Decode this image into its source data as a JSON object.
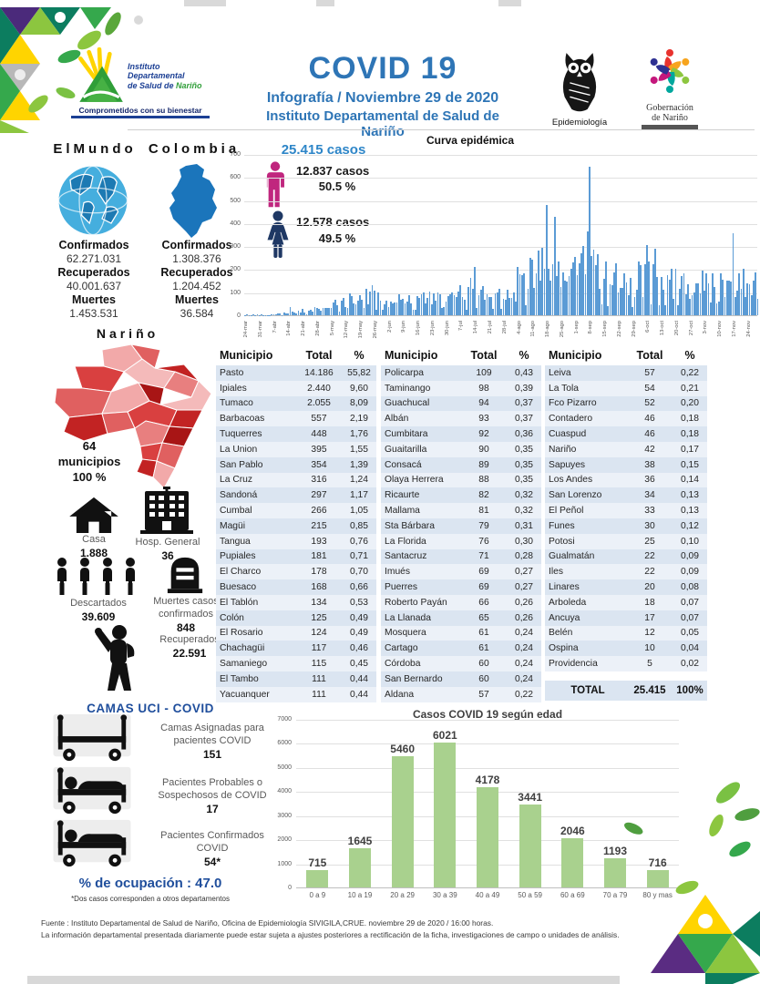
{
  "header": {
    "title": "COVID 19",
    "subtitle1": "Infografía / Noviembre 29 de 2020",
    "subtitle2": "Instituto Departamental de Salud de Nariño",
    "logo_idsn": {
      "line1": "Instituto",
      "line2": "Departamental",
      "line3": "de Salud de ",
      "line3b": "Nariño",
      "tagline": "Comprometidos con su bienestar"
    },
    "owl_caption": "Epidemiología",
    "gov_line1": "Gobernación",
    "gov_line2": "de Nariño"
  },
  "stats_labels": {
    "confirmados": "Confirmados",
    "recuperados": "Recuperados",
    "muertes": "Muertes"
  },
  "world": {
    "title": "ElMundo",
    "confirmados": "62.271.031",
    "recuperados": "40.001.637",
    "muertes": "1.453.531"
  },
  "colombia": {
    "title": "Colombia",
    "confirmados": "1.308.376",
    "recuperados": "1.204.452",
    "muertes": "36.584"
  },
  "narino": {
    "title": "Nariño",
    "municipios_num": "64",
    "municipios_label": "municipios",
    "municipios_pct": "100 %",
    "casa_label": "Casa",
    "casa_value": "1.888",
    "hosp_label": "Hosp. General",
    "hosp_value": "36",
    "descartados_label": "Descartados",
    "descartados_value": "39.609",
    "muertes_label1": "Muertes casos",
    "muertes_label2": "confirmados",
    "muertes_value": "848",
    "recuperados_label": "Recuperados",
    "recuperados_value": "22.591"
  },
  "camas": {
    "heading": "CAMAS UCI - COVID",
    "item1_l1": "Camas Asignadas para",
    "item1_l2": "pacientes COVID",
    "item1_v": "151",
    "item2_l1": "Pacientes Probables o",
    "item2_l2": "Sospechosos de COVID",
    "item2_v": "17",
    "item3_l1": "Pacientes Confirmados",
    "item3_l2": "COVID",
    "item3_v": "54*",
    "ocupacion": "% de ocupación : 47.0",
    "footnote": "*Dos  casos corresponden a otros departamentos"
  },
  "cases_summary": {
    "total": "25.415  casos",
    "male_cases": "12.837   casos",
    "male_pct": "50.5 %",
    "female_cases": "12.578   casos",
    "female_pct": "49.5 %"
  },
  "table": {
    "headers": [
      "Municipio",
      "Total",
      "%"
    ],
    "groups": [
      [
        [
          "Pasto",
          "14.186",
          "55,82"
        ],
        [
          "Ipiales",
          "2.440",
          "9,60"
        ],
        [
          "Tumaco",
          "2.055",
          "8,09"
        ],
        [
          "Barbacoas",
          "557",
          "2,19"
        ],
        [
          "Tuquerres",
          "448",
          "1,76"
        ],
        [
          "La Union",
          "395",
          "1,55"
        ],
        [
          "San Pablo",
          "354",
          "1,39"
        ],
        [
          "La Cruz",
          "316",
          "1,24"
        ],
        [
          "Sandoná",
          "297",
          "1,17"
        ],
        [
          "Cumbal",
          "266",
          "1,05"
        ],
        [
          "Magüi",
          "215",
          "0,85"
        ],
        [
          "Tangua",
          "193",
          "0,76"
        ],
        [
          "Pupiales",
          "181",
          "0,71"
        ],
        [
          "El Charco",
          "178",
          "0,70"
        ],
        [
          "Buesaco",
          "168",
          "0,66"
        ],
        [
          "El Tablón",
          "134",
          "0,53"
        ],
        [
          "Colón",
          "125",
          "0,49"
        ],
        [
          "El Rosario",
          "124",
          "0,49"
        ],
        [
          "Chachagüi",
          "117",
          "0,46"
        ],
        [
          "Samaniego",
          "115",
          "0,45"
        ],
        [
          "El Tambo",
          "111",
          "0,44"
        ],
        [
          "Yacuanquer",
          "111",
          "0,44"
        ]
      ],
      [
        [
          "Policarpa",
          "109",
          "0,43"
        ],
        [
          "Taminango",
          "98",
          "0,39"
        ],
        [
          "Guachucal",
          "94",
          "0,37"
        ],
        [
          "Albán",
          "93",
          "0,37"
        ],
        [
          "Cumbitara",
          "92",
          "0,36"
        ],
        [
          "Guaitarilla",
          "90",
          "0,35"
        ],
        [
          "Consacá",
          "89",
          "0,35"
        ],
        [
          "Olaya Herrera",
          "88",
          "0,35"
        ],
        [
          "Ricaurte",
          "82",
          "0,32"
        ],
        [
          "Mallama",
          "81",
          "0,32"
        ],
        [
          "Sta Bárbara",
          "79",
          "0,31"
        ],
        [
          "La Florida",
          "76",
          "0,30"
        ],
        [
          "Santacruz",
          "71",
          "0,28"
        ],
        [
          "Imués",
          "69",
          "0,27"
        ],
        [
          "Puerres",
          "69",
          "0,27"
        ],
        [
          "Roberto Payán",
          "66",
          "0,26"
        ],
        [
          "La Llanada",
          "65",
          "0,26"
        ],
        [
          "Mosquera",
          "61",
          "0,24"
        ],
        [
          "Cartago",
          "61",
          "0,24"
        ],
        [
          "Córdoba",
          "60",
          "0,24"
        ],
        [
          "San Bernardo",
          "60",
          "0,24"
        ],
        [
          "Aldana",
          "57",
          "0,22"
        ]
      ],
      [
        [
          "Leiva",
          "57",
          "0,22"
        ],
        [
          "La Tola",
          "54",
          "0,21"
        ],
        [
          "Fco Pizarro",
          "52",
          "0,20"
        ],
        [
          "Contadero",
          "46",
          "0,18"
        ],
        [
          "Cuaspud",
          "46",
          "0,18"
        ],
        [
          "Nariño",
          "42",
          "0,17"
        ],
        [
          "Sapuyes",
          "38",
          "0,15"
        ],
        [
          "Los Andes",
          "36",
          "0,14"
        ],
        [
          "San Lorenzo",
          "34",
          "0,13"
        ],
        [
          "El Peñol",
          "33",
          "0,13"
        ],
        [
          "Funes",
          "30",
          "0,12"
        ],
        [
          "Potosi",
          "25",
          "0,10"
        ],
        [
          "Gualmatán",
          "22",
          "0,09"
        ],
        [
          "Iles",
          "22",
          "0,09"
        ],
        [
          "Linares",
          "20",
          "0,08"
        ],
        [
          "Arboleda",
          "18",
          "0,07"
        ],
        [
          "Ancuya",
          "17",
          "0,07"
        ],
        [
          "Belén",
          "12",
          "0,05"
        ],
        [
          "Ospina",
          "10",
          "0,04"
        ],
        [
          "Providencia",
          "5",
          "0,02"
        ]
      ]
    ],
    "total_row": [
      "TOTAL",
      "25.415",
      "100%"
    ]
  },
  "chart_data": [
    {
      "id": "curva_epidemica",
      "type": "bar",
      "title": "Curva epidémica",
      "ylim": [
        0,
        700
      ],
      "yticks": [
        0,
        100,
        200,
        300,
        400,
        500,
        600,
        700
      ],
      "x_ticks": [
        "24-mar",
        "31-mar",
        "7-abr",
        "14-abr",
        "21-abr",
        "28-abr",
        "5-may",
        "12-may",
        "19-may",
        "26-may",
        "2-jun",
        "9-jun",
        "16-jun",
        "23-jun",
        "30-jun",
        "7-jul",
        "14-jul",
        "21-jul",
        "28-jul",
        "4-ago",
        "11-ago",
        "18-ago",
        "25-ago",
        "1-sep",
        "8-sep",
        "15-sep",
        "22-sep",
        "29-sep",
        "6-oct",
        "13-oct",
        "20-oct",
        "27-oct",
        "3-nov",
        "10-nov",
        "17-nov",
        "24-nov"
      ],
      "weekly_values_estimated": [
        2,
        3,
        6,
        14,
        22,
        30,
        45,
        70,
        90,
        110,
        60,
        80,
        90,
        85,
        70,
        105,
        140,
        95,
        125,
        165,
        260,
        225,
        175,
        245,
        310,
        205,
        185,
        155,
        215,
        180,
        160,
        150,
        170,
        145,
        180,
        160
      ],
      "daily_spikes_estimated": {
        "22": 35,
        "112": 210,
        "147": 480,
        "151": 430,
        "168": 650,
        "196": 305,
        "200": 290,
        "238": 360
      },
      "days_total": 251,
      "bar_color": "#5b9bd5",
      "estimated": true
    },
    {
      "id": "casos_por_edad",
      "type": "bar",
      "title": "Casos COVID 19  según edad",
      "categories": [
        "0 a 9",
        "10 a 19",
        "20 a 29",
        "30 a 39",
        "40 a 49",
        "50 a 59",
        "60 a 69",
        "70 a 79",
        "80 y mas"
      ],
      "values": [
        715,
        1645,
        5460,
        6021,
        4178,
        3441,
        2046,
        1193,
        716
      ],
      "ylim": [
        0,
        7000
      ],
      "yticks": [
        0,
        1000,
        2000,
        3000,
        4000,
        5000,
        6000,
        7000
      ],
      "bar_color": "#a9d18e"
    }
  ],
  "footer": {
    "line1": "Fuente : Instituto Departamental de Salud de Nariño, Oficina de Epidemiología SIVIGILA,CRUE.  noviembre  29  de  2020 /  16:00  horas.",
    "line2": "La información departamental presentada diariamente puede estar sujeta a ajustes posteriores a  rectificación de la ficha, investigaciones de campo o unidades de análisis."
  }
}
